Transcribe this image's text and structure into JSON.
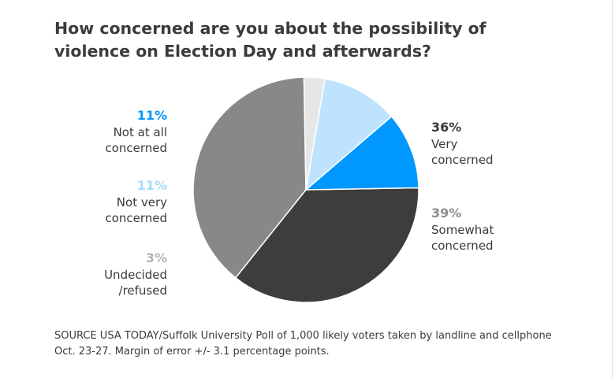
{
  "title": "How concerned are you about the possibility of violence on Election Day and afterwards?",
  "source": "SOURCE USA TODAY/Suffolk University Poll of 1,000 likely voters taken by landline and cellphone Oct. 23-27. Margin of error +/- 3.1 percentage points.",
  "chart_data": {
    "type": "pie",
    "title": "How concerned are you about the possibility of violence on Election Day and afterwards?",
    "slices": [
      {
        "label": "Very\nconcerned",
        "value": 36,
        "pct_label": "36%",
        "color": "#3d3d3d"
      },
      {
        "label": "Somewhat\nconcerned",
        "value": 39,
        "pct_label": "39%",
        "color": "#888888"
      },
      {
        "label": "Undecided\n/refused",
        "value": 3,
        "pct_label": "3%",
        "color": "#e6e6e6",
        "pct_color": "#b3b3b3"
      },
      {
        "label": "Not very\nconcerned",
        "value": 11,
        "pct_label": "11%",
        "color": "#bde3ff",
        "pct_color": "#a9d9fb"
      },
      {
        "label": "Not at all\nconcerned",
        "value": 11,
        "pct_label": "11%",
        "color": "#0097ff",
        "pct_color": "#0097ff"
      }
    ]
  }
}
